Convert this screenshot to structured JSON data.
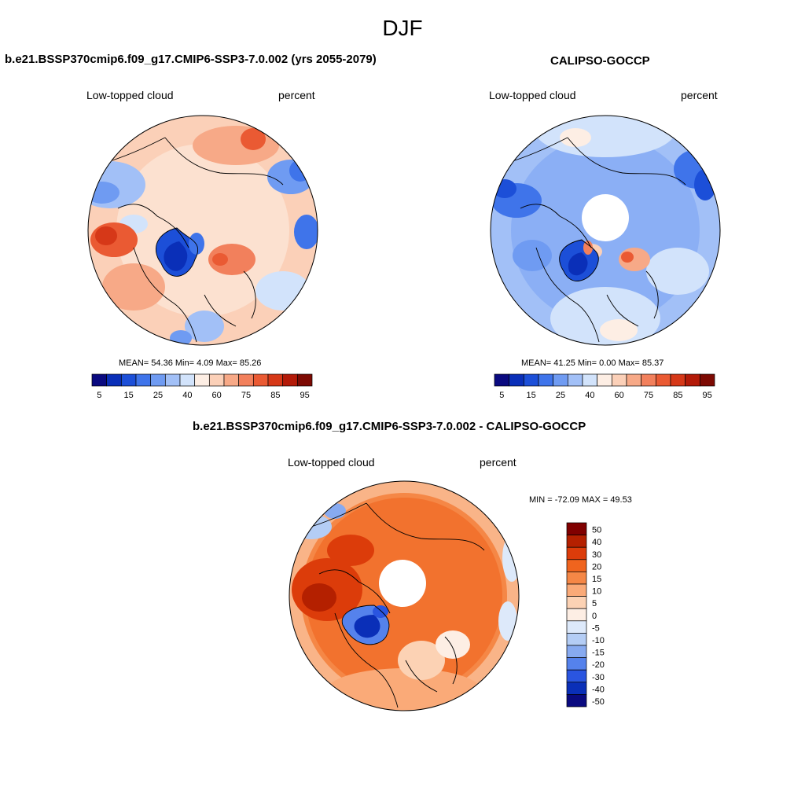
{
  "page": {
    "title": "DJF",
    "diff_title": "b.e21.BSSP370cmip6.f09_g17.CMIP6-SSP3-7.0.002 - CALIPSO-GOCCP"
  },
  "chart_data": [
    {
      "type": "heatmap",
      "title": "b.e21.BSSP370cmip6.f09_g17.CMIP6-SSP3-7.0.002 (yrs 2055-2079)",
      "left_label": "Low-topped cloud",
      "right_label": "percent",
      "stats": {
        "mean_label": "MEAN=",
        "mean": "54.36",
        "min_label": "Min=",
        "min": "4.09",
        "max_label": "Max=",
        "max": "85.26"
      },
      "colorbar": {
        "orientation": "horizontal",
        "ticks": [
          "5",
          "15",
          "25",
          "40",
          "60",
          "75",
          "85",
          "95"
        ],
        "colors": [
          "#0a0a80",
          "#0a2fb8",
          "#1c4fd8",
          "#3f74ea",
          "#6f9bf2",
          "#a2c0f7",
          "#d2e3fb",
          "#fdeee4",
          "#fbd0b8",
          "#f7a987",
          "#f2805c",
          "#ea5a33",
          "#d63818",
          "#b31a08",
          "#7d0a03"
        ]
      }
    },
    {
      "type": "heatmap",
      "title": "CALIPSO-GOCCP",
      "left_label": "Low-topped cloud",
      "right_label": "percent",
      "stats": {
        "mean_label": "MEAN=",
        "mean": "41.25",
        "min_label": "Min=",
        "min": "0.00",
        "max_label": "Max=",
        "max": "85.37"
      },
      "colorbar": {
        "orientation": "horizontal",
        "ticks": [
          "5",
          "15",
          "25",
          "40",
          "60",
          "75",
          "85",
          "95"
        ],
        "colors": [
          "#0a0a80",
          "#0a2fb8",
          "#1c4fd8",
          "#3f74ea",
          "#6f9bf2",
          "#a2c0f7",
          "#d2e3fb",
          "#fdeee4",
          "#fbd0b8",
          "#f7a987",
          "#f2805c",
          "#ea5a33",
          "#d63818",
          "#b31a08",
          "#7d0a03"
        ]
      }
    },
    {
      "type": "heatmap",
      "title": "b.e21.BSSP370cmip6.f09_g17.CMIP6-SSP3-7.0.002 - CALIPSO-GOCCP",
      "left_label": "Low-topped cloud",
      "right_label": "percent",
      "stats_text": "MIN = -72.09 MAX =  49.53",
      "colorbar": {
        "orientation": "vertical",
        "ticks": [
          "50",
          "40",
          "30",
          "20",
          "15",
          "10",
          "5",
          "0",
          "-5",
          "-10",
          "-15",
          "-20",
          "-30",
          "-40",
          "-50"
        ],
        "colors": [
          "#800000",
          "#b42000",
          "#dc3c0a",
          "#f0641e",
          "#f58746",
          "#faaa78",
          "#fcd2b4",
          "#fdeee4",
          "#dde9fa",
          "#b4cdf5",
          "#87aaf0",
          "#5582ec",
          "#2a55e0",
          "#0a2fb8",
          "#0a0a80"
        ]
      }
    }
  ]
}
